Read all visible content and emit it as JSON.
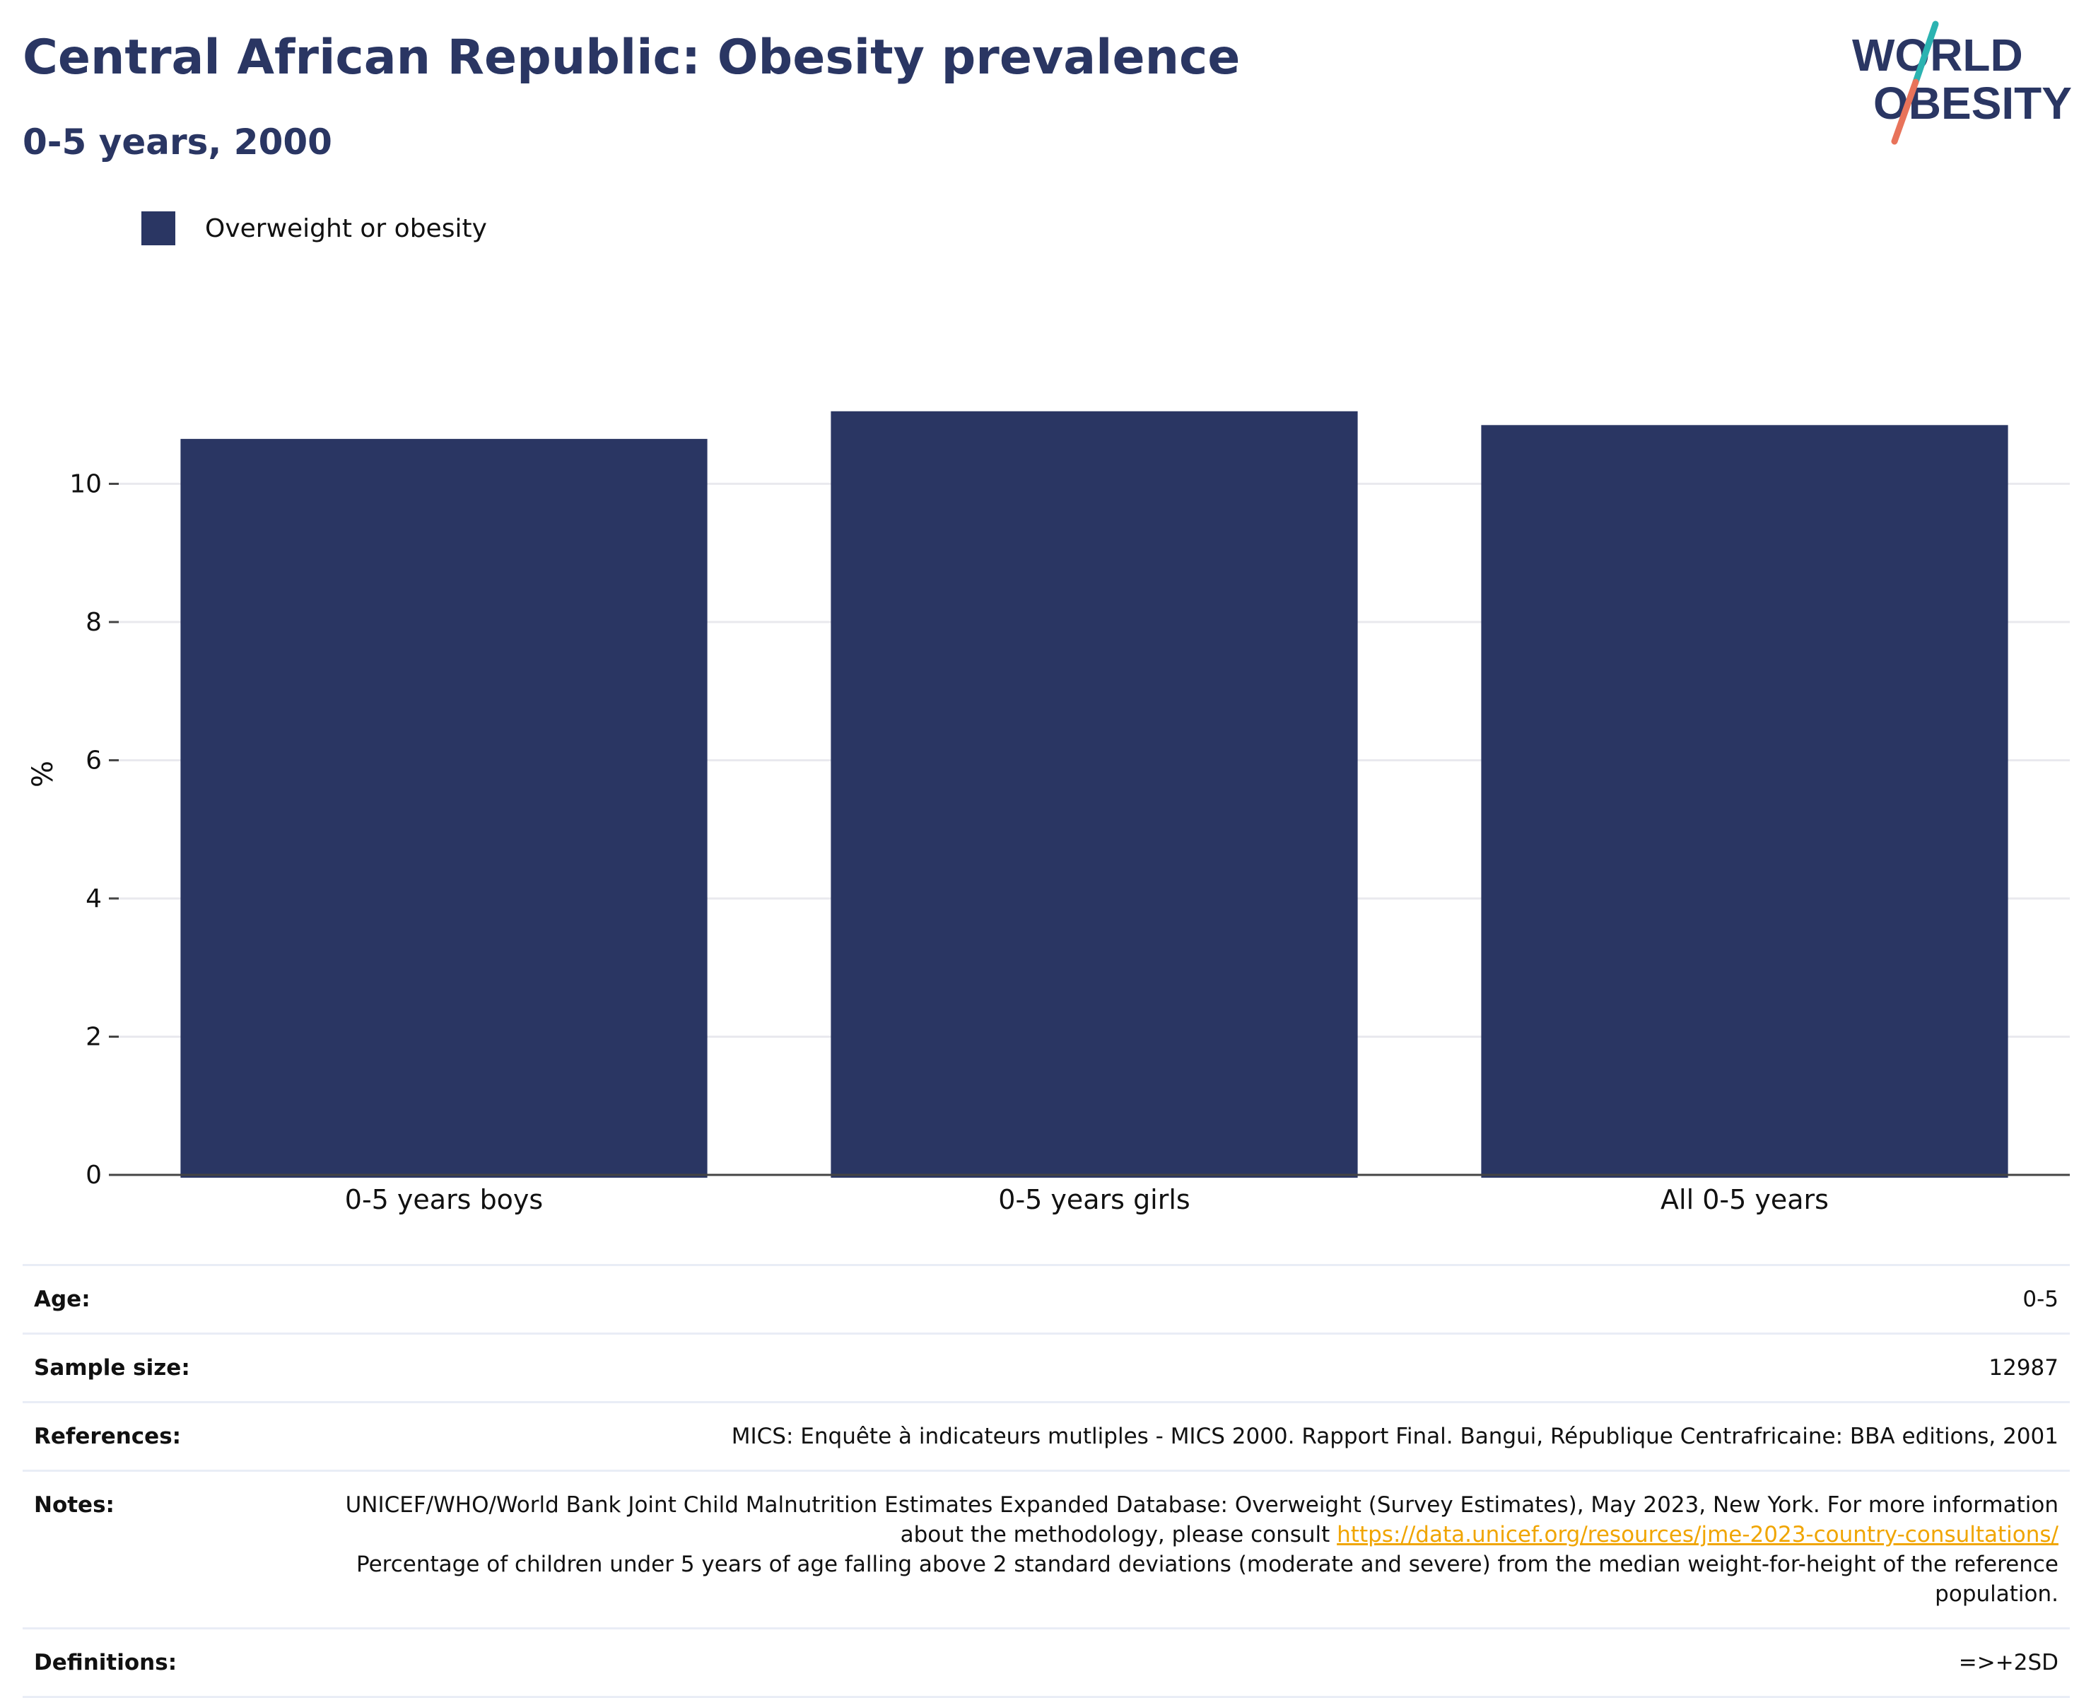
{
  "header": {
    "title": "Central African Republic: Obesity prevalence",
    "subtitle": "0-5 years, 2000"
  },
  "logo": {
    "line1": "WORLD",
    "line2": "OBESITY"
  },
  "colors": {
    "bar": "#2a3663",
    "title": "#2a3663",
    "logo_teal": "#2bb3b1",
    "logo_coral": "#e8735a",
    "link": "#f0a500",
    "grid": "#e9e9ee",
    "axis": "#444444"
  },
  "chart_data": {
    "type": "bar",
    "categories": [
      "0-5 years boys",
      "0-5 years girls",
      "All 0-5 years"
    ],
    "series": [
      {
        "name": "Overweight or obesity",
        "values": [
          10.65,
          11.05,
          10.85
        ]
      }
    ],
    "xlabel": "",
    "ylabel": "%",
    "ylim": [
      0,
      11.6
    ],
    "yticks": [
      0,
      2,
      4,
      6,
      8,
      10
    ],
    "grid": true,
    "legend_position": "top-left"
  },
  "info": {
    "age_label": "Age:",
    "age_value": "0-5",
    "sample_label": "Sample size:",
    "sample_value": "12987",
    "references_label": "References:",
    "references_value": "MICS: Enquête à indicateurs mutliples - MICS 2000. Rapport Final. Bangui, République Centrafricaine: BBA editions, 2001",
    "notes_label": "Notes:",
    "notes_text_1": "UNICEF/WHO/World Bank Joint Child Malnutrition Estimates Expanded Database: Overweight (Survey Estimates), May 2023, New York. For more information about the methodology, please consult ",
    "notes_link": "https://data.unicef.org/resources/jme-2023-country-consultations/",
    "notes_text_2": "Percentage of children under 5 years of age falling above 2 standard deviations (moderate and severe) from the median weight-for-height of the reference population.",
    "definitions_label": "Definitions:",
    "definitions_value": "=>+2SD"
  }
}
